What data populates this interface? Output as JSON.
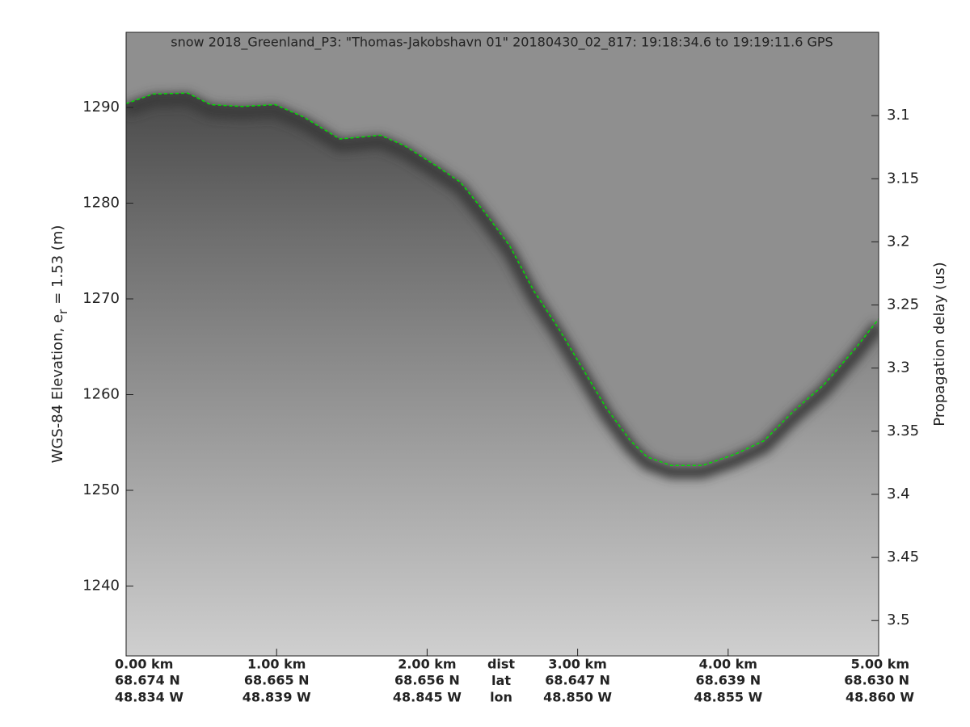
{
  "chart_data": {
    "type": "line",
    "title": "snow 2018_Greenland_P3: \"Thomas-Jakobshavn 01\"  20180430_02_817: 19:18:34.6 to 19:19:11.6 GPS",
    "ylabel": [
      "WGS-84 Elevation, e",
      "r",
      "= 1.53 (m)"
    ],
    "y2label": "Propagation delay (us)",
    "xlim": [
      0,
      5
    ],
    "xticks": [
      {
        "value": 0,
        "label": "0.00 km"
      },
      {
        "value": 1,
        "label": "1.00 km"
      },
      {
        "value": 2,
        "label": "2.00 km"
      },
      {
        "value": 3,
        "label": "3.00 km"
      },
      {
        "value": 4,
        "label": "4.00 km"
      },
      {
        "value": 5,
        "label": "5.00 km"
      }
    ],
    "lat_labels": [
      "68.674 N",
      "68.665 N",
      "68.656 N",
      "68.647 N",
      "68.639 N",
      "68.630 N"
    ],
    "lon_labels": [
      "48.834 W",
      "48.839 W",
      "48.845 W",
      "48.850 W",
      "48.855 W",
      "48.860 W"
    ],
    "row_labels": [
      "dist",
      "lat",
      "lon"
    ],
    "ylim": [
      1232.7,
      1297.85
    ],
    "yticks": [
      1240,
      1250,
      1260,
      1270,
      1280,
      1290
    ],
    "y2lim": [
      3.528,
      3.034
    ],
    "y2ticks": [
      3.1,
      3.15,
      3.2,
      3.25,
      3.3,
      3.35,
      3.4,
      3.45,
      3.5
    ],
    "series": [
      {
        "name": "surface",
        "color": "#00e000",
        "x": [
          0,
          0.18,
          0.41,
          0.56,
          0.77,
          0.99,
          1.18,
          1.42,
          1.69,
          1.85,
          2.06,
          2.22,
          2.38,
          2.55,
          2.71,
          2.87,
          3.03,
          3.19,
          3.35,
          3.46,
          3.62,
          3.83,
          4.05,
          4.24,
          4.43,
          4.64,
          4.85,
          5.0
        ],
        "values": [
          1290.4,
          1291.4,
          1291.5,
          1290.3,
          1290.1,
          1290.3,
          1289.0,
          1286.7,
          1287.1,
          1286.0,
          1283.9,
          1282.2,
          1279.1,
          1275.5,
          1270.8,
          1267.0,
          1262.8,
          1258.6,
          1255.2,
          1253.5,
          1252.6,
          1252.6,
          1253.8,
          1255.2,
          1258.2,
          1261.1,
          1264.9,
          1267.9
        ]
      }
    ]
  }
}
